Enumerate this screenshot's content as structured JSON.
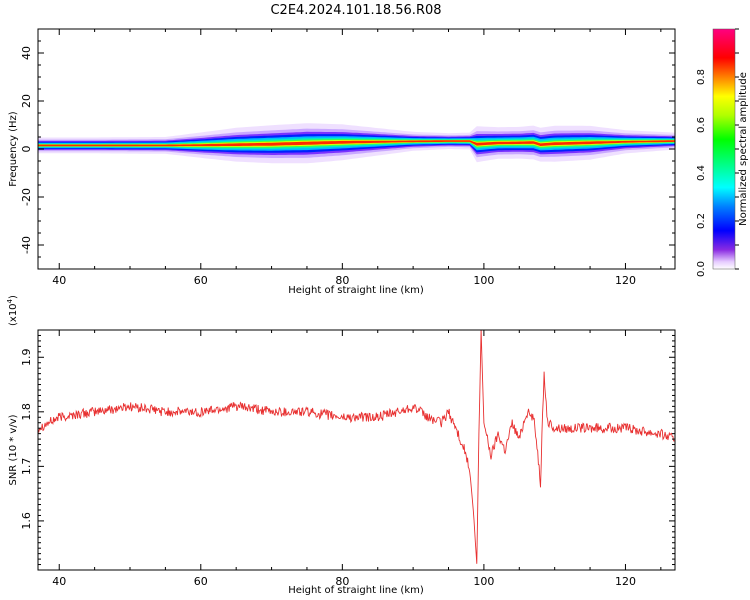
{
  "title": "C2E4.2024.101.18.56.R08",
  "chart_data": [
    {
      "type": "heatmap",
      "xlabel": "Height of straight line (km)",
      "ylabel": "Frequency (Hz)",
      "xlim": [
        37,
        127
      ],
      "ylim": [
        -50,
        50
      ],
      "xticks": [
        "40",
        "60",
        "80",
        "100",
        "120"
      ],
      "yticks": [
        "40",
        "20",
        "0",
        "-20",
        "-40"
      ],
      "colorbar": {
        "label": "Normalized spectral amplitude",
        "range": [
          0,
          1
        ],
        "ticks": [
          "0.0",
          "0.2",
          "0.4",
          "0.6",
          "0.8"
        ]
      },
      "band": {
        "x": [
          37,
          45,
          55,
          60,
          65,
          70,
          75,
          80,
          85,
          90,
          95,
          98,
          99,
          102,
          105,
          107,
          108,
          110,
          115,
          120,
          127
        ],
        "center_hz": [
          1.5,
          1.5,
          1.5,
          1.6,
          1.8,
          2.0,
          2.4,
          2.8,
          3.0,
          3.2,
          3.3,
          3.3,
          2.0,
          2.5,
          2.6,
          2.7,
          1.8,
          2.2,
          2.6,
          3.0,
          3.3
        ],
        "halfwidth_hz": [
          1.5,
          1.5,
          1.6,
          2.4,
          3.2,
          3.6,
          3.8,
          3.4,
          2.6,
          1.8,
          1.5,
          1.6,
          3.4,
          3.0,
          3.0,
          3.2,
          3.2,
          3.4,
          3.2,
          2.2,
          1.6
        ]
      }
    },
    {
      "type": "line",
      "xlabel": "Height of straight line (km)",
      "ylabel": "SNR (10 * v/v)",
      "y_multiplier": "(x10",
      "y_multiplier_exp": "4",
      "xlim": [
        37,
        127
      ],
      "ylim": [
        1.51,
        1.95
      ],
      "xticks": [
        "40",
        "60",
        "80",
        "100",
        "120"
      ],
      "yticks": [
        "1.9",
        "1.8",
        "1.7",
        "1.6"
      ],
      "series": [
        {
          "color": "#e83030",
          "x": [
            37,
            40,
            45,
            50,
            55,
            60,
            65,
            70,
            75,
            80,
            85,
            88,
            90,
            92,
            94,
            95,
            96,
            97,
            97.5,
            98,
            98.5,
            99,
            99.3,
            99.6,
            100,
            101,
            102,
            103,
            104,
            105,
            106,
            107,
            107.5,
            108,
            108.5,
            109,
            110,
            115,
            120,
            125,
            127
          ],
          "y": [
            1.77,
            1.79,
            1.8,
            1.81,
            1.8,
            1.8,
            1.81,
            1.8,
            1.8,
            1.79,
            1.79,
            1.8,
            1.81,
            1.79,
            1.78,
            1.8,
            1.77,
            1.74,
            1.72,
            1.69,
            1.62,
            1.52,
            1.76,
            1.95,
            1.78,
            1.72,
            1.76,
            1.73,
            1.78,
            1.75,
            1.8,
            1.79,
            1.74,
            1.67,
            1.87,
            1.78,
            1.77,
            1.77,
            1.77,
            1.76,
            1.75
          ]
        }
      ]
    }
  ]
}
